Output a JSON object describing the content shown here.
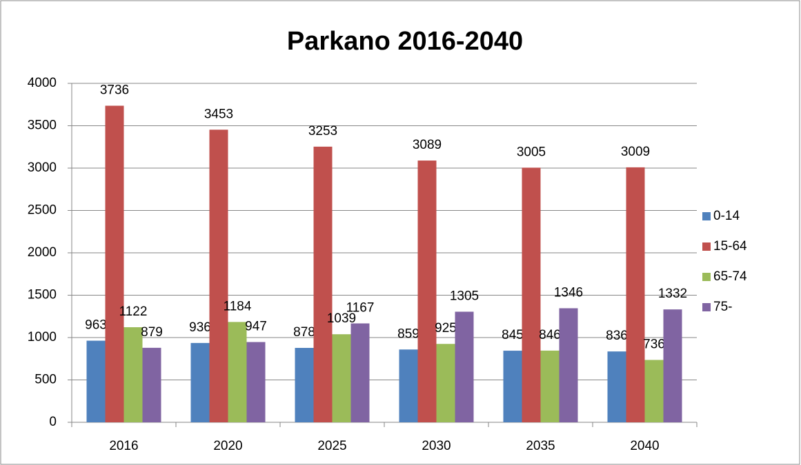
{
  "chart_data": {
    "type": "bar",
    "title": "Parkano 2016-2040",
    "categories": [
      "2016",
      "2020",
      "2025",
      "2030",
      "2035",
      "2040"
    ],
    "series": [
      {
        "name": "0-14",
        "color": "#4f81bd",
        "values": [
          963,
          936,
          878,
          859,
          845,
          836
        ]
      },
      {
        "name": "15-64",
        "color": "#c0504d",
        "values": [
          3736,
          3453,
          3253,
          3089,
          3005,
          3009
        ]
      },
      {
        "name": "65-74",
        "color": "#9bbb59",
        "values": [
          1122,
          1184,
          1039,
          925,
          846,
          736
        ]
      },
      {
        "name": "75-",
        "color": "#8064a2",
        "values": [
          879,
          947,
          1167,
          1305,
          1346,
          1332
        ]
      }
    ],
    "ylim": [
      0,
      4000
    ],
    "yticks": [
      0,
      500,
      1000,
      1500,
      2000,
      2500,
      3000,
      3500,
      4000
    ],
    "grid": true,
    "legend": "right"
  }
}
